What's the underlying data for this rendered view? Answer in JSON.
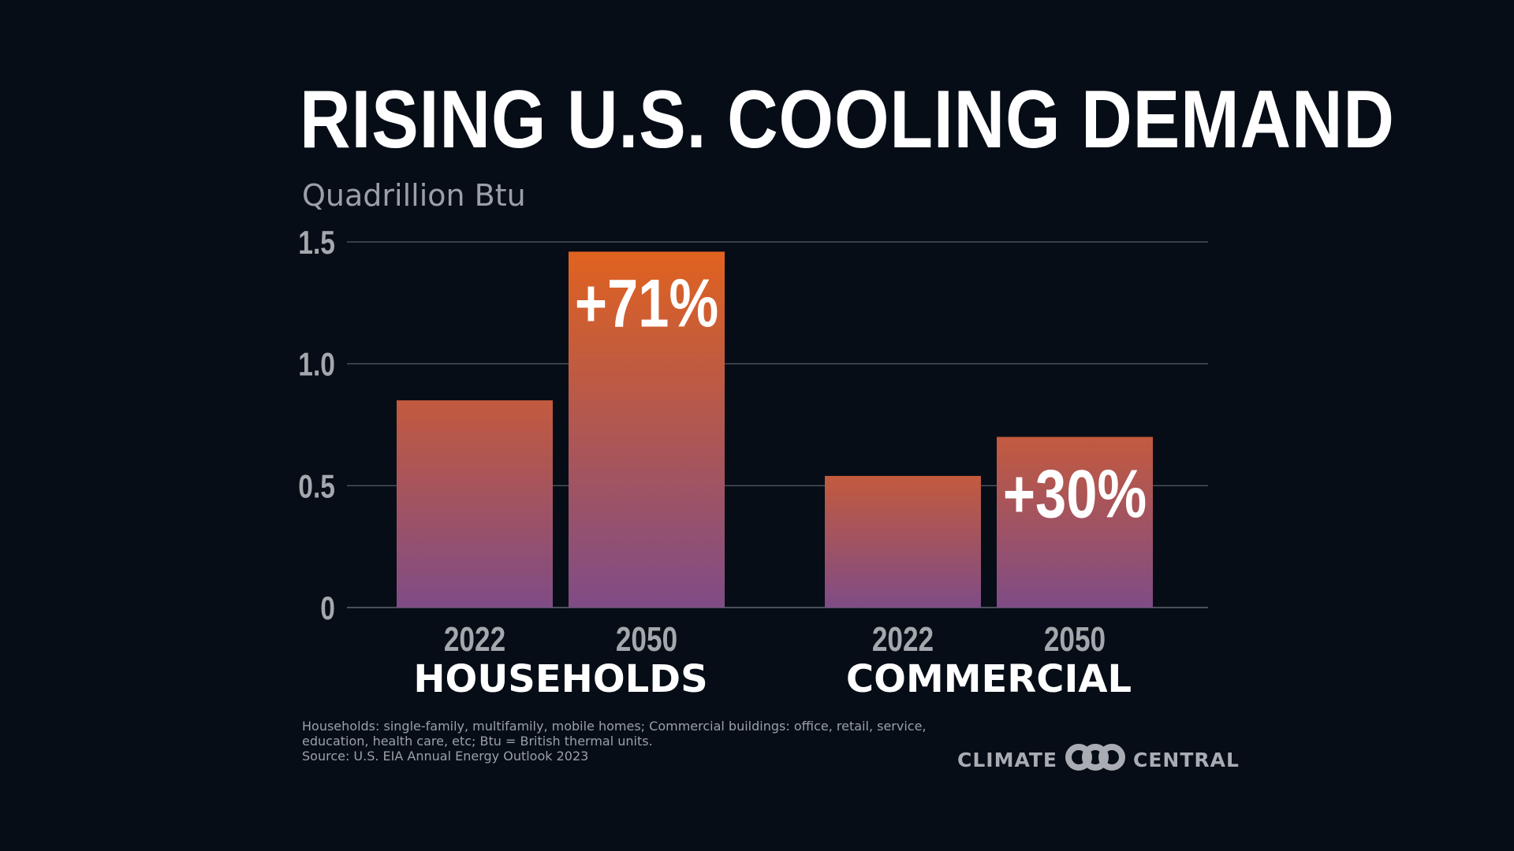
{
  "title": "RISING U.S. COOLING DEMAND",
  "chart_data": {
    "type": "bar",
    "title": "RISING U.S. COOLING DEMAND",
    "ylabel": "Quadrillion Btu",
    "xlabel": "",
    "ylim": [
      0,
      1.5
    ],
    "yticks": [
      "0",
      "0.5",
      "1.0",
      "1.5"
    ],
    "grid": true,
    "groups": [
      {
        "name": "HOUSEHOLDS",
        "bars": [
          {
            "label": "2022",
            "value": 0.85,
            "annotation": ""
          },
          {
            "label": "2050",
            "value": 1.46,
            "annotation": "+71%"
          }
        ]
      },
      {
        "name": "COMMERCIAL",
        "bars": [
          {
            "label": "2022",
            "value": 0.54,
            "annotation": ""
          },
          {
            "label": "2050",
            "value": 0.7,
            "annotation": "+30%"
          }
        ]
      }
    ],
    "colors": {
      "bar_top_strong": "#e0621f",
      "bar_top": "#c35a3e",
      "bar_bottom": "#7f4c86",
      "grid": "#4a5058",
      "tick": "#a4a8ad",
      "group_label": "#ffffff"
    }
  },
  "footnote": {
    "lines": [
      "Households: single-family, multifamily, mobile homes; Commercial buildings: office, retail, service,",
      "education, health care, etc; Btu = British thermal units.",
      "Source: U.S. EIA Annual Energy Outlook 2023"
    ]
  },
  "logo": {
    "left": "CLIMATE",
    "right": "CENTRAL",
    "icon": "interlocking-rings-icon"
  }
}
